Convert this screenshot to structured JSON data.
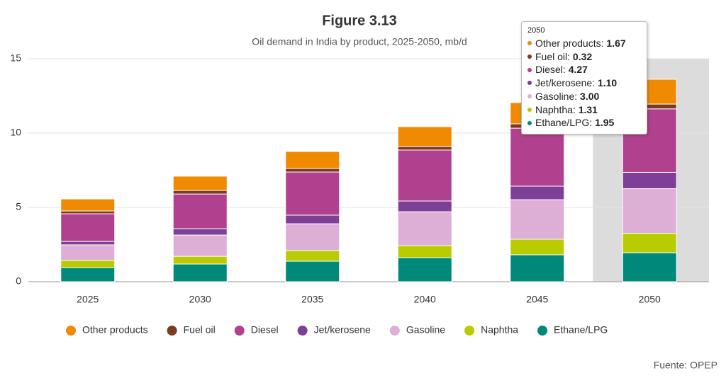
{
  "chart_data": {
    "type": "stacked_bar",
    "title": "Figure 3.13",
    "subtitle": "Oil demand in India by product, 2025-2050, mb/d",
    "source": "Fuente: OPEP",
    "categories": [
      "2025",
      "2030",
      "2035",
      "2040",
      "2045",
      "2050"
    ],
    "ylim": [
      0,
      15
    ],
    "yticks": [
      0,
      5,
      10,
      15
    ],
    "grid": true,
    "legend": "bottom",
    "series": [
      {
        "name": "Other products",
        "color": "#f08a00",
        "values": [
          0.81,
          0.96,
          1.14,
          1.33,
          1.43,
          1.67
        ],
        "value_labels": [
          null,
          null,
          null,
          null,
          null,
          "1.67"
        ]
      },
      {
        "name": "Fuel oil",
        "color": "#7a3b22",
        "values": [
          0.19,
          0.24,
          0.24,
          0.24,
          0.29,
          0.32
        ],
        "value_labels": [
          null,
          null,
          null,
          null,
          null,
          "0.32"
        ]
      },
      {
        "name": "Diesel",
        "color": "#b0418f",
        "values": [
          1.86,
          2.33,
          2.9,
          3.43,
          3.9,
          4.27
        ],
        "value_labels": [
          null,
          null,
          null,
          null,
          null,
          "4.27"
        ]
      },
      {
        "name": "Jet/kerosene",
        "color": "#7e3f98",
        "values": [
          0.23,
          0.43,
          0.58,
          0.72,
          0.91,
          1.1
        ],
        "value_labels": [
          null,
          null,
          null,
          null,
          null,
          "1.10"
        ]
      },
      {
        "name": "Gasoline",
        "color": "#ddaed6",
        "values": [
          1.05,
          1.43,
          1.8,
          2.28,
          2.66,
          3.0
        ],
        "value_labels": [
          null,
          null,
          null,
          null,
          null,
          "3.00"
        ]
      },
      {
        "name": "Naphtha",
        "color": "#b8cc00",
        "values": [
          0.48,
          0.52,
          0.72,
          0.81,
          1.05,
          1.31
        ],
        "value_labels": [
          null,
          null,
          null,
          null,
          null,
          "1.31"
        ]
      },
      {
        "name": "Ethane/LPG",
        "color": "#00897b",
        "values": [
          0.95,
          1.19,
          1.38,
          1.62,
          1.81,
          1.95
        ],
        "value_labels": [
          null,
          null,
          null,
          null,
          null,
          "1.95"
        ]
      }
    ]
  }
}
